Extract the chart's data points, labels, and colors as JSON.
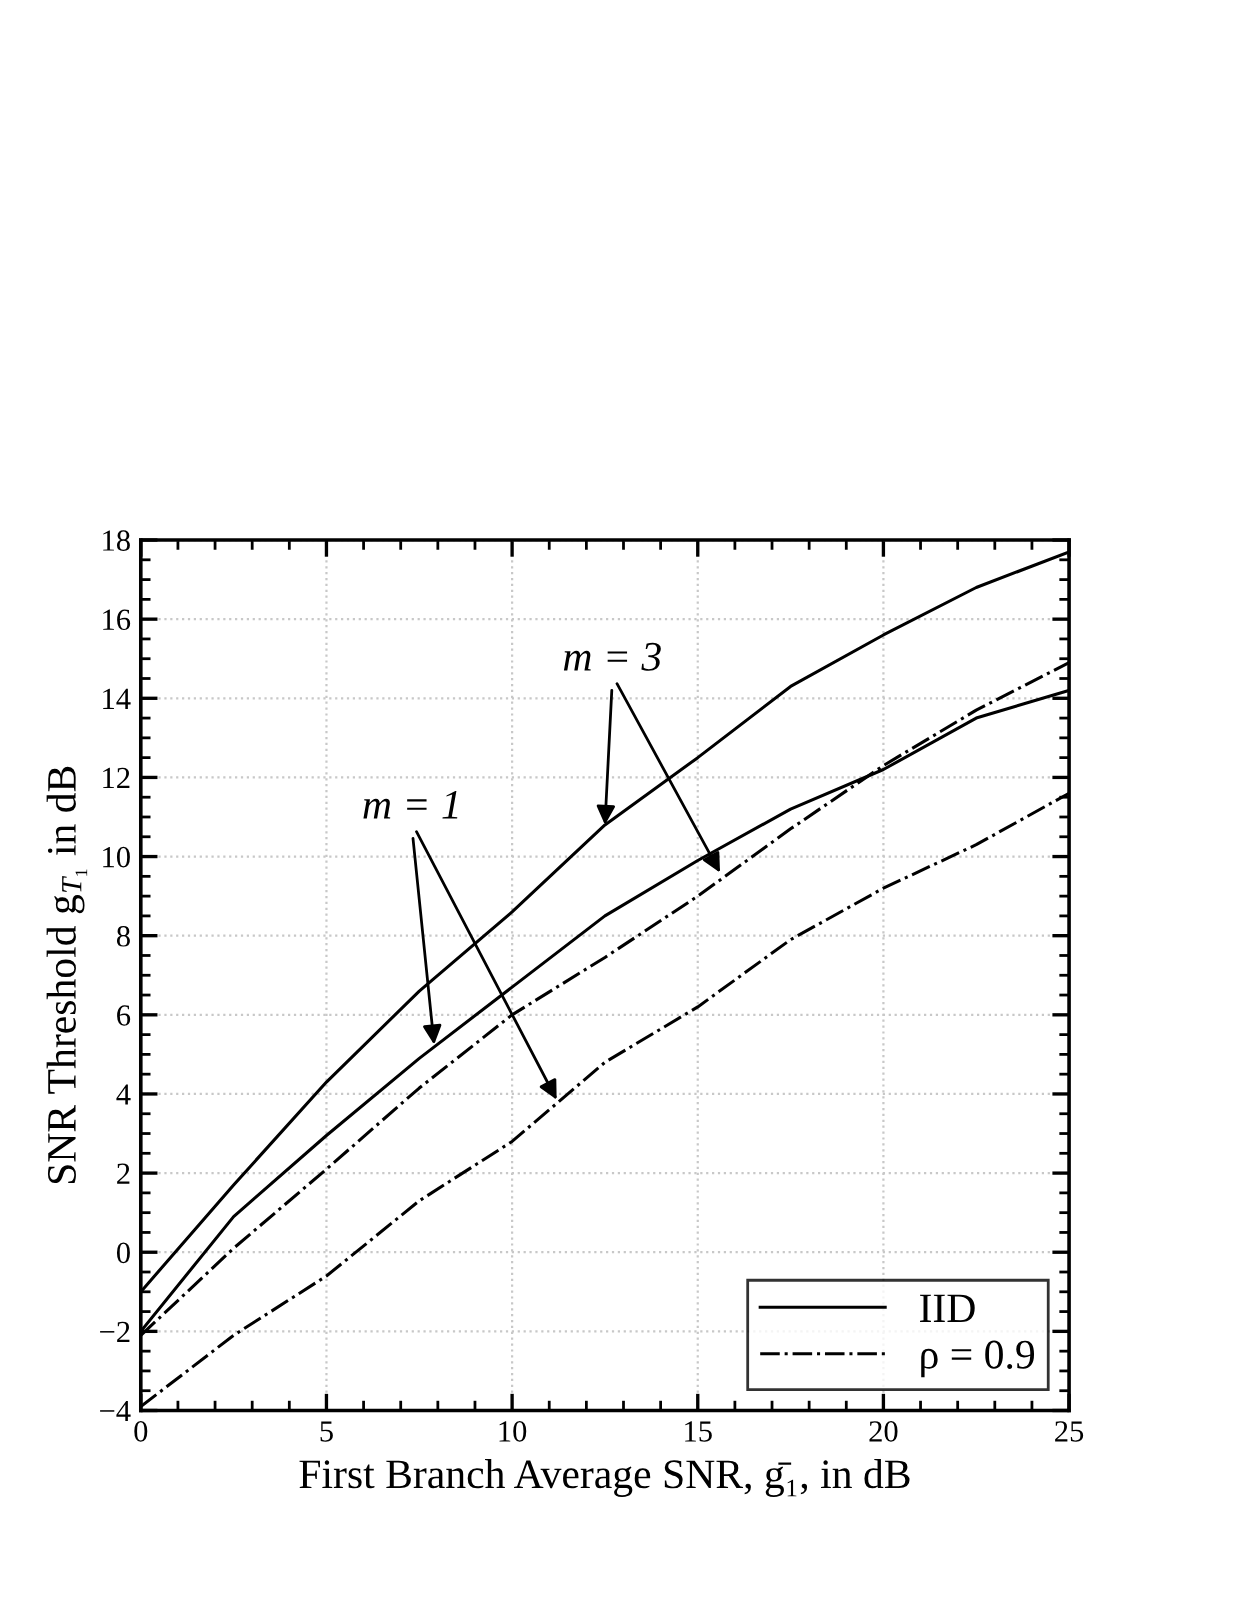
{
  "chart_data": {
    "type": "line",
    "xlabel": "First Branch Average SNR, ḡ₁, in dB",
    "ylabel": "SNR Threshold g$_{T₁}$ in dB",
    "x": [
      0,
      2.5,
      5,
      7.5,
      10,
      12.5,
      15,
      17.5,
      20,
      22.5,
      25
    ],
    "series": [
      {
        "name": "IID",
        "color": "#000000",
        "line_style": "solid",
        "values": [
          -1.0,
          1.7,
          4.3,
          6.6,
          8.6,
          10.8,
          12.5,
          14.3,
          15.6,
          16.8,
          17.7
        ]
      },
      {
        "color": "#000000",
        "line_style": "solid",
        "values": [
          -2.0,
          0.9,
          2.95,
          4.9,
          6.7,
          8.5,
          9.9,
          11.2,
          12.2,
          13.5,
          14.2
        ]
      },
      {
        "name": "ρ = 0.9",
        "color": "#000000",
        "line_style": "dashdot",
        "values": [
          -2.1,
          0.1,
          2.1,
          4.15,
          6.0,
          7.45,
          9.0,
          10.7,
          12.3,
          13.7,
          14.9
        ]
      },
      {
        "color": "#000000",
        "line_style": "dashdot",
        "values": [
          -3.9,
          -2.1,
          -0.6,
          1.3,
          2.8,
          4.8,
          6.2,
          7.9,
          9.2,
          10.3,
          11.6
        ]
      }
    ],
    "annotations": [
      {
        "text": "m = 3",
        "x": 12.5,
        "y": 10.8
      },
      {
        "text": "m = 1",
        "x": 7.9,
        "y": 5.25
      }
    ],
    "xlim": [
      0,
      25
    ],
    "ylim": [
      -4,
      18
    ],
    "xticks": [
      0,
      5,
      10,
      15,
      20,
      25
    ],
    "yticks": [
      {
        "value": -4,
        "label": "−4"
      },
      {
        "value": -2,
        "label": "−2"
      },
      0,
      2,
      4,
      6,
      8,
      10,
      12,
      14,
      16,
      18
    ],
    "grid": true,
    "legend": "bottom right",
    "marker": "none"
  }
}
